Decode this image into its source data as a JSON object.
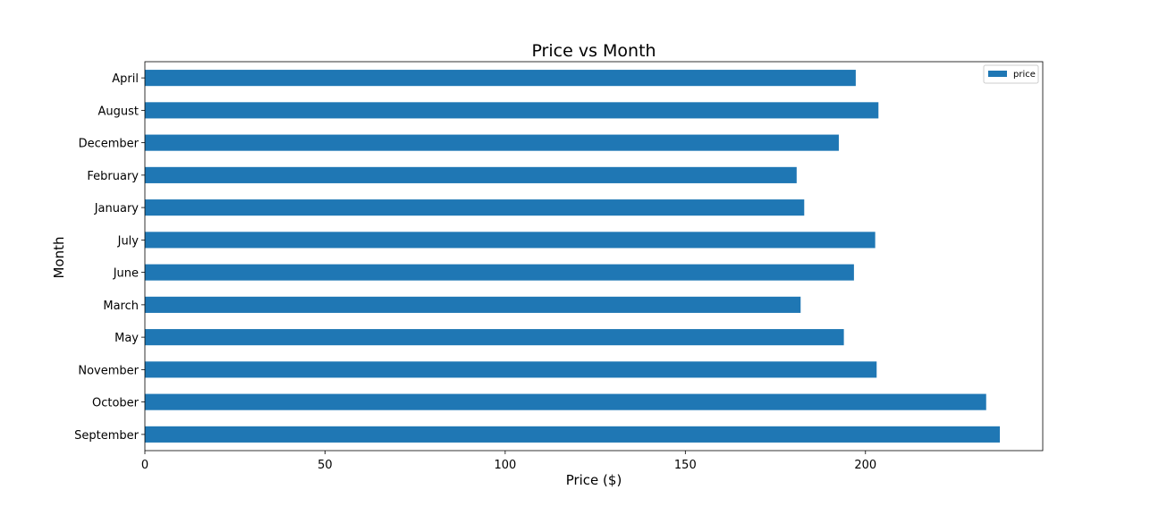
{
  "chart_data": {
    "type": "bar",
    "orientation": "horizontal",
    "title": "Price vs Month",
    "xlabel": "Price ($)",
    "ylabel": "Month",
    "categories": [
      "April",
      "August",
      "December",
      "February",
      "January",
      "July",
      "June",
      "March",
      "May",
      "November",
      "October",
      "September"
    ],
    "series": [
      {
        "name": "price",
        "color": "#1f77b4",
        "values": [
          197.3,
          203.6,
          192.6,
          180.9,
          183.0,
          202.7,
          196.8,
          182.0,
          194.0,
          203.1,
          233.5,
          237.3
        ]
      }
    ],
    "xlim": [
      0,
      249.2
    ],
    "xticks": [
      0,
      50,
      100,
      150,
      200
    ],
    "grid": false,
    "legend_position": "top-right"
  }
}
